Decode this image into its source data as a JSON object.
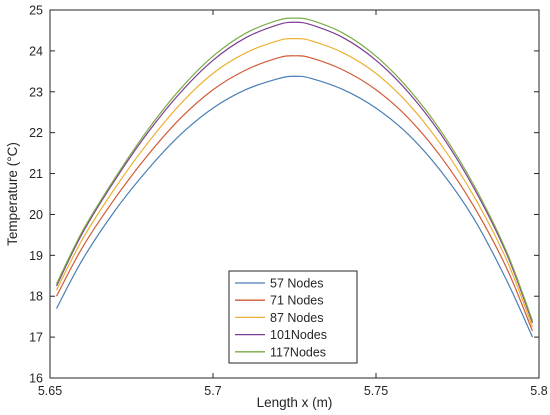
{
  "chart_data": {
    "type": "line",
    "title": "",
    "xlabel": "Length x (m)",
    "ylabel": "Temperature (°C)",
    "xlim": [
      5.65,
      5.8
    ],
    "ylim": [
      16,
      25
    ],
    "x_ticks": [
      5.65,
      5.7,
      5.75,
      5.8
    ],
    "x_tick_labels": [
      "5.65",
      "5.7",
      "5.75",
      "5.8"
    ],
    "y_ticks": [
      16,
      17,
      18,
      19,
      20,
      21,
      22,
      23,
      24,
      25
    ],
    "y_tick_labels": [
      "16",
      "17",
      "18",
      "19",
      "20",
      "21",
      "22",
      "23",
      "24",
      "25"
    ],
    "grid": false,
    "legend_position": "bottom-center",
    "x": [
      5.652,
      5.66,
      5.67,
      5.68,
      5.69,
      5.7,
      5.71,
      5.72,
      5.725,
      5.73,
      5.74,
      5.75,
      5.76,
      5.77,
      5.78,
      5.79,
      5.798
    ],
    "series": [
      {
        "name": "57 Nodes",
        "color": "#4a7fb5",
        "values": [
          17.7,
          18.9,
          20.1,
          21.1,
          21.95,
          22.6,
          23.05,
          23.32,
          23.38,
          23.33,
          23.05,
          22.6,
          21.95,
          21.05,
          19.9,
          18.4,
          17.0
        ]
      },
      {
        "name": "71 Nodes",
        "color": "#d15a37",
        "values": [
          18.0,
          19.2,
          20.4,
          21.45,
          22.35,
          23.05,
          23.53,
          23.83,
          23.88,
          23.83,
          23.53,
          23.05,
          22.35,
          21.4,
          20.2,
          18.7,
          17.15
        ]
      },
      {
        "name": "87 Nodes",
        "color": "#ecb133",
        "values": [
          18.15,
          19.4,
          20.65,
          21.75,
          22.7,
          23.45,
          23.95,
          24.25,
          24.3,
          24.25,
          23.95,
          23.45,
          22.7,
          21.7,
          20.45,
          18.9,
          17.25
        ]
      },
      {
        "name": "101Nodes",
        "color": "#7e3c94",
        "values": [
          18.25,
          19.55,
          20.85,
          22.0,
          22.98,
          23.77,
          24.32,
          24.64,
          24.7,
          24.64,
          24.32,
          23.77,
          22.98,
          21.95,
          20.65,
          19.05,
          17.35
        ]
      },
      {
        "name": "117Nodes",
        "color": "#7aad46",
        "values": [
          18.3,
          19.6,
          20.9,
          22.07,
          23.07,
          23.87,
          24.43,
          24.75,
          24.8,
          24.75,
          24.43,
          23.87,
          23.07,
          22.03,
          20.72,
          19.1,
          17.4
        ]
      }
    ]
  }
}
